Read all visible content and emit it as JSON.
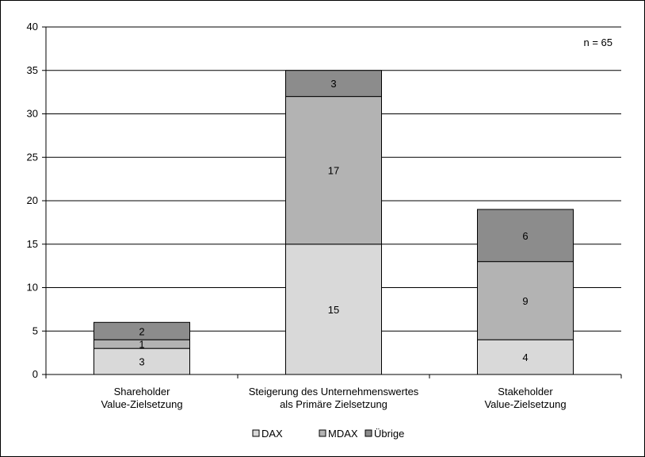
{
  "chart_data": {
    "type": "bar",
    "stacked": true,
    "categories": [
      [
        "Shareholder",
        "Value-Zielsetzung"
      ],
      [
        "Steigerung des Unternehmenswertes",
        "als Primäre Zielsetzung"
      ],
      [
        "Stakeholder",
        "Value-Zielsetzung"
      ]
    ],
    "series": [
      {
        "name": "DAX",
        "values": [
          3,
          15,
          4
        ],
        "color": "#d9d9d9"
      },
      {
        "name": "MDAX",
        "values": [
          1,
          17,
          9
        ],
        "color": "#b3b3b3"
      },
      {
        "name": "Übrige",
        "values": [
          2,
          3,
          6
        ],
        "color": "#8c8c8c"
      }
    ],
    "ylim": [
      0,
      40
    ],
    "yticks": [
      0,
      5,
      10,
      15,
      20,
      25,
      30,
      35,
      40
    ],
    "grid": true,
    "legend_position": "bottom",
    "annotation": "n = 65",
    "title": "",
    "xlabel": "",
    "ylabel": ""
  }
}
